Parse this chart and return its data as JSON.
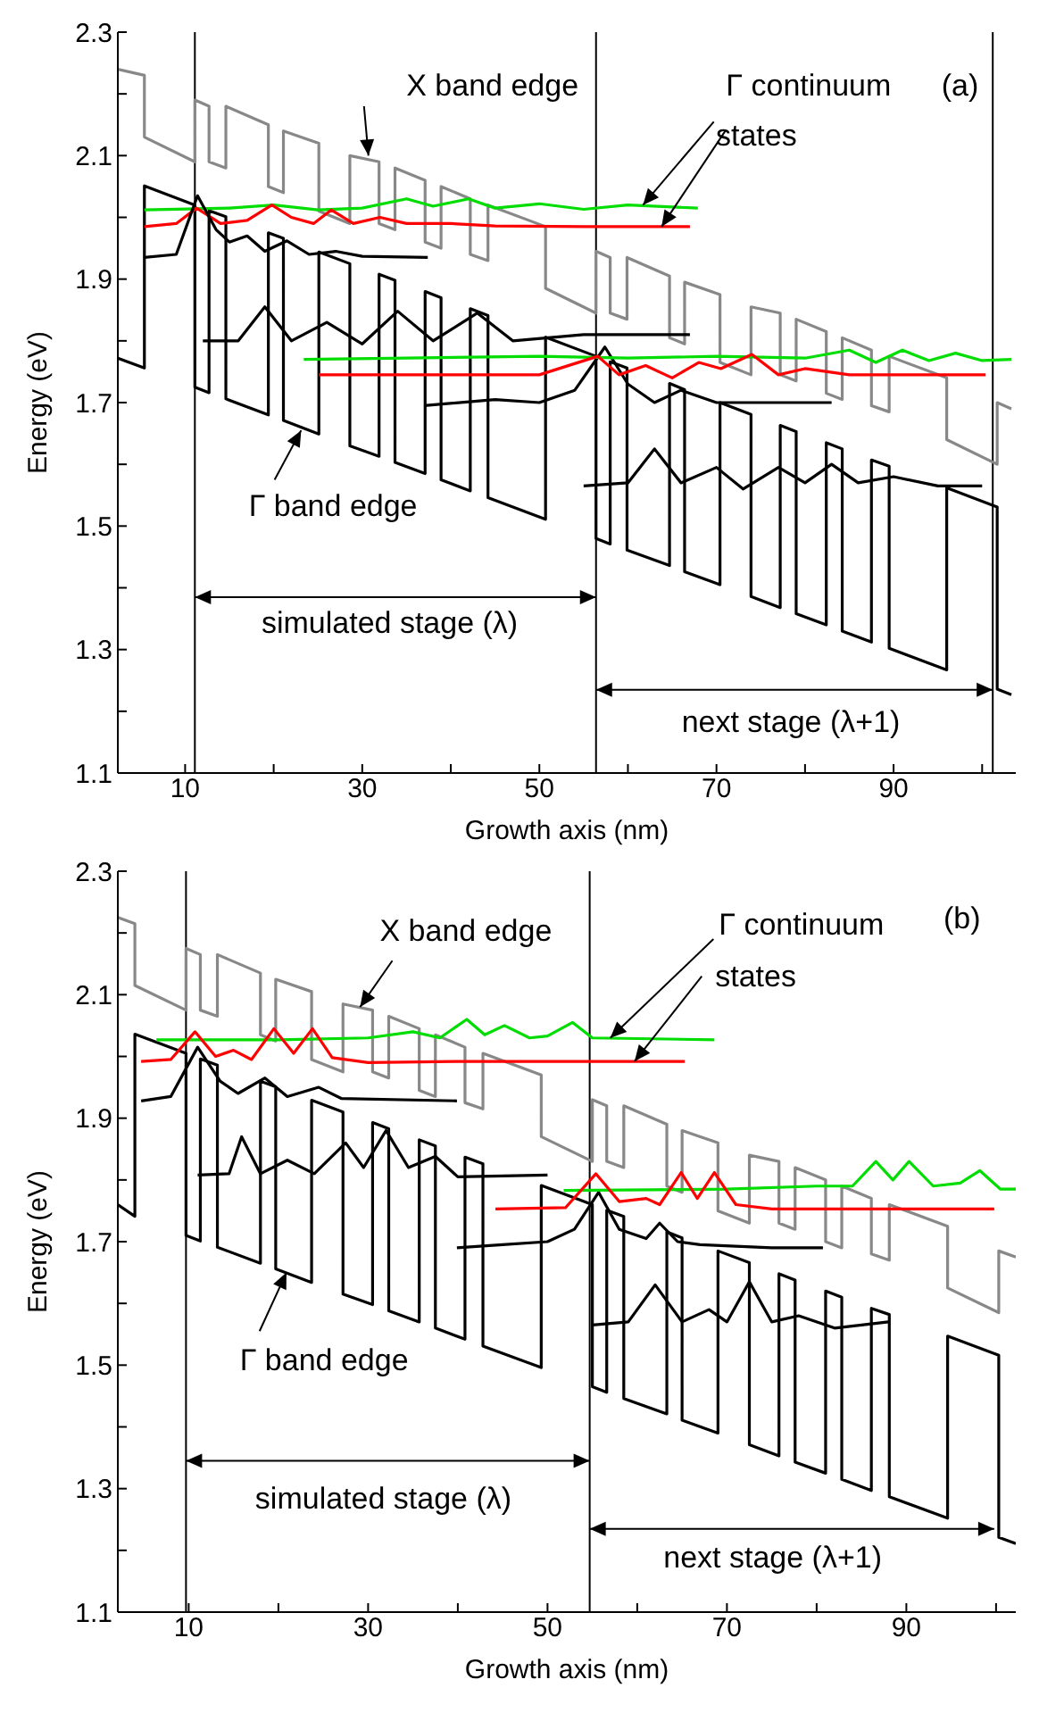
{
  "chart_data": [
    {
      "type": "line",
      "xlabel": "Growth axis (nm)",
      "ylabel": "Energy (eV)",
      "xlim": [
        2.4,
        103.8
      ],
      "ylim": [
        1.1,
        2.3
      ],
      "xticks": [
        10,
        {
          "value": 20,
          "label": null
        },
        30,
        {
          "value": 40,
          "label": null
        },
        50,
        {
          "value": 60,
          "label": null
        },
        70,
        {
          "value": 80,
          "label": null
        },
        90,
        {
          "value": 100,
          "label": null
        }
      ],
      "yticks": [
        1.1,
        {
          "value": 1.2,
          "label": null
        },
        1.3,
        {
          "value": 1.4,
          "label": null
        },
        1.5,
        {
          "value": 1.6,
          "label": null
        },
        1.7,
        {
          "value": 1.8,
          "label": null
        },
        1.9,
        {
          "value": 2.0,
          "label": null
        },
        2.1,
        {
          "value": 2.2,
          "label": null
        },
        2.3
      ],
      "ref_lines": [
        {
          "axis": "x",
          "value": 11.1,
          "color": "#000000"
        },
        {
          "axis": "x",
          "value": 56.4,
          "color": "#000000"
        },
        {
          "axis": "x",
          "value": 101.2,
          "color": "#000000"
        }
      ],
      "annotations": [
        {
          "text": "X band edge",
          "x": 30.7,
          "y": 2.1
        },
        {
          "text": "Γ continuum",
          "x": 61.7,
          "y": 2.02
        },
        {
          "text": "states",
          "x": 63.8,
          "y": 1.985
        },
        "(a)",
        {
          "text": "Γ band edge",
          "x": 23.1,
          "y": 1.655
        },
        "simulated stage (λ)",
        "next stage (λ+1)"
      ],
      "series": [
        {
          "type": "line",
          "color": "#888888",
          "x": [
            2.4,
            5.4,
            5.4,
            11.1,
            11.1,
            12.7,
            12.7,
            14.6,
            14.6,
            19.4,
            19.4,
            21.1,
            21.1,
            25.1,
            25.1,
            28.6,
            28.6,
            31.9,
            31.9,
            33.7,
            33.7,
            37.1,
            37.1,
            38.9,
            38.9,
            42.2,
            42.2,
            44.2,
            44.2,
            50.7,
            50.7,
            56.4,
            56.4,
            58.0,
            58.0,
            59.9,
            59.9,
            64.7,
            64.7,
            66.4,
            66.4,
            70.4,
            70.4,
            73.9,
            73.9,
            77.2,
            77.2,
            79.0,
            79.0,
            82.4,
            82.4,
            84.2,
            84.2,
            87.5,
            87.5,
            89.5,
            89.5,
            96.0,
            96.0,
            101.7,
            101.7,
            103.3
          ],
          "values": [
            2.24,
            2.23,
            2.13,
            2.09,
            2.19,
            2.18,
            2.09,
            2.08,
            2.18,
            2.15,
            2.05,
            2.04,
            2.14,
            2.12,
            2.01,
            1.99,
            2.1,
            2.09,
            1.99,
            1.98,
            2.08,
            2.06,
            1.96,
            1.95,
            2.05,
            2.03,
            1.94,
            1.93,
            2.02,
            1.985,
            1.885,
            1.845,
            1.945,
            1.935,
            1.845,
            1.835,
            1.935,
            1.905,
            1.805,
            1.795,
            1.895,
            1.875,
            1.765,
            1.745,
            1.855,
            1.845,
            1.745,
            1.735,
            1.835,
            1.815,
            1.715,
            1.705,
            1.805,
            1.785,
            1.695,
            1.685,
            1.775,
            1.74,
            1.64,
            1.6,
            1.7,
            1.69
          ]
        },
        {
          "type": "line",
          "color": "#000000",
          "x": [
            2.4,
            5.4,
            5.4,
            11.1,
            11.1,
            12.7,
            12.7,
            14.6,
            14.6,
            19.4,
            19.4,
            21.1,
            21.1,
            25.1,
            25.1,
            28.6,
            28.6,
            31.9,
            31.9,
            33.7,
            33.7,
            37.1,
            37.1,
            38.9,
            38.9,
            42.2,
            42.2,
            44.2,
            44.2,
            50.7,
            50.7,
            56.4,
            56.4,
            58.0,
            58.0,
            59.9,
            59.9,
            64.7,
            64.7,
            66.4,
            66.4,
            70.4,
            70.4,
            73.9,
            73.9,
            77.2,
            77.2,
            79.0,
            79.0,
            82.4,
            82.4,
            84.2,
            84.2,
            87.5,
            87.5,
            89.5,
            89.5,
            96.0,
            96.0,
            101.7,
            101.7,
            103.3
          ],
          "values": [
            1.772,
            1.756,
            2.051,
            2.02,
            1.725,
            1.716,
            2.011,
            2.001,
            1.706,
            1.68,
            1.975,
            1.966,
            1.671,
            1.649,
            1.944,
            1.925,
            1.63,
            1.613,
            1.908,
            1.898,
            1.603,
            1.585,
            1.88,
            1.87,
            1.575,
            1.557,
            1.852,
            1.841,
            1.546,
            1.511,
            1.806,
            1.775,
            1.48,
            1.471,
            1.766,
            1.756,
            1.461,
            1.436,
            1.731,
            1.721,
            1.426,
            1.405,
            1.7,
            1.681,
            1.386,
            1.368,
            1.663,
            1.653,
            1.358,
            1.34,
            1.635,
            1.625,
            1.33,
            1.312,
            1.607,
            1.597,
            1.302,
            1.267,
            1.562,
            1.531,
            1.236,
            1.227
          ]
        },
        {
          "type": "line",
          "color": "#00dd00",
          "x": [
            5.4,
            15,
            20,
            25,
            30,
            35,
            38,
            42,
            45,
            50,
            55,
            60,
            67.9
          ],
          "values": [
            2.012,
            2.015,
            2.02,
            2.012,
            2.015,
            2.03,
            2.018,
            2.03,
            2.015,
            2.022,
            2.013,
            2.02,
            2.015
          ]
        },
        {
          "type": "line",
          "color": "#ff0000",
          "x": [
            5.4,
            9,
            11.3,
            14,
            17,
            19.8,
            22,
            24.5,
            26.5,
            29,
            32,
            35,
            40,
            45,
            55,
            67
          ],
          "values": [
            1.985,
            1.99,
            2.015,
            1.99,
            1.995,
            2.02,
            2.0,
            1.99,
            2.012,
            1.99,
            2.0,
            1.99,
            1.99,
            1.986,
            1.985,
            1.985
          ]
        },
        {
          "type": "line",
          "color": "#000000",
          "x": [
            5.4,
            9,
            11.4,
            13.5,
            15,
            17,
            19,
            21.5,
            24,
            27,
            30,
            37.4
          ],
          "values": [
            1.935,
            1.94,
            2.035,
            1.98,
            1.96,
            1.97,
            1.945,
            1.962,
            1.94,
            1.945,
            1.937,
            1.935
          ]
        },
        {
          "type": "line",
          "color": "#000000",
          "x": [
            12,
            16,
            19,
            22,
            26,
            30,
            34,
            38,
            43,
            47,
            55,
            67
          ],
          "values": [
            1.8,
            1.8,
            1.855,
            1.8,
            1.83,
            1.795,
            1.848,
            1.8,
            1.845,
            1.8,
            1.81,
            1.81
          ]
        },
        {
          "type": "line",
          "color": "#000000",
          "x": [
            37,
            45,
            50,
            54,
            57.4,
            60,
            63,
            66,
            70,
            80,
            83
          ],
          "values": [
            1.695,
            1.705,
            1.7,
            1.72,
            1.79,
            1.73,
            1.7,
            1.72,
            1.7,
            1.7,
            1.7
          ]
        },
        {
          "type": "line",
          "color": "#000000",
          "x": [
            55,
            60,
            63,
            66,
            70,
            73,
            77,
            80,
            83,
            86,
            90,
            95,
            100
          ],
          "values": [
            1.565,
            1.57,
            1.625,
            1.57,
            1.595,
            1.56,
            1.595,
            1.57,
            1.6,
            1.57,
            1.58,
            1.565,
            1.565
          ]
        },
        {
          "type": "line",
          "color": "#00dd00",
          "x": [
            23.4,
            35,
            50,
            60,
            70,
            80,
            85,
            88,
            91,
            94,
            97,
            100,
            103.3
          ],
          "values": [
            1.77,
            1.772,
            1.775,
            1.772,
            1.775,
            1.772,
            1.785,
            1.765,
            1.785,
            1.768,
            1.78,
            1.768,
            1.77
          ]
        },
        {
          "type": "line",
          "color": "#ff0000",
          "x": [
            25.1,
            50,
            56.6,
            59,
            62,
            65,
            68,
            70.5,
            74,
            77,
            80,
            85,
            100.4
          ],
          "values": [
            1.745,
            1.745,
            1.775,
            1.745,
            1.76,
            1.74,
            1.765,
            1.755,
            1.778,
            1.745,
            1.755,
            1.745,
            1.745
          ]
        }
      ]
    },
    {
      "type": "line",
      "xlabel": "Growth axis (nm)",
      "ylabel": "Energy (eV)",
      "xlim": [
        2.1,
        102.2
      ],
      "ylim": [
        1.1,
        2.3
      ],
      "xticks": [
        10,
        {
          "value": 20,
          "label": null
        },
        30,
        {
          "value": 40,
          "label": null
        },
        50,
        {
          "value": 60,
          "label": null
        },
        70,
        {
          "value": 80,
          "label": null
        },
        90,
        {
          "value": 100,
          "label": null
        }
      ],
      "yticks": [
        1.1,
        {
          "value": 1.2,
          "label": null
        },
        1.3,
        {
          "value": 1.4,
          "label": null
        },
        1.5,
        {
          "value": 1.6,
          "label": null
        },
        1.7,
        {
          "value": 1.8,
          "label": null
        },
        1.9,
        {
          "value": 2.0,
          "label": null
        },
        2.1,
        {
          "value": 2.2,
          "label": null
        },
        2.3
      ],
      "ref_lines": [
        {
          "axis": "x",
          "value": 9.7,
          "color": "#000000"
        },
        {
          "axis": "x",
          "value": 54.7,
          "color": "#000000"
        }
      ],
      "annotations": [
        {
          "text": "X band edge",
          "x": 29.1,
          "y": 2.08
        },
        {
          "text": "Γ continuum",
          "x": 57.0,
          "y": 2.03
        },
        {
          "text": "states",
          "x": 59.7,
          "y": 1.992
        },
        "(b)",
        {
          "text": "Γ band edge",
          "x": 20.9,
          "y": 1.65
        },
        "simulated stage (λ)",
        "next stage (λ+1)"
      ],
      "series": [
        {
          "type": "line",
          "color": "#888888",
          "x": [
            2.1,
            4.0,
            4.0,
            9.7,
            9.7,
            11.3,
            11.3,
            13.2,
            13.2,
            18.0,
            18.0,
            19.7,
            19.7,
            23.7,
            23.7,
            27.2,
            27.2,
            30.5,
            30.5,
            32.3,
            32.3,
            35.7,
            35.7,
            37.5,
            37.5,
            40.8,
            40.8,
            42.8,
            42.8,
            49.3,
            49.3,
            55.0,
            55.0,
            56.6,
            56.6,
            58.5,
            58.5,
            63.3,
            63.3,
            65.0,
            65.0,
            69.0,
            69.0,
            72.5,
            72.5,
            75.8,
            75.8,
            77.6,
            77.6,
            81.0,
            81.0,
            82.8,
            82.8,
            86.1,
            86.1,
            88.1,
            88.1,
            94.6,
            94.6,
            100.3,
            100.3,
            102.2
          ],
          "values": [
            2.225,
            2.215,
            2.115,
            2.075,
            2.175,
            2.165,
            2.075,
            2.065,
            2.165,
            2.135,
            2.035,
            2.025,
            2.125,
            2.105,
            1.995,
            1.975,
            2.085,
            2.075,
            1.975,
            1.965,
            2.065,
            2.045,
            1.945,
            1.935,
            2.035,
            2.015,
            1.925,
            1.915,
            2.005,
            1.97,
            1.87,
            1.83,
            1.93,
            1.92,
            1.83,
            1.82,
            1.92,
            1.89,
            1.79,
            1.78,
            1.88,
            1.86,
            1.75,
            1.73,
            1.84,
            1.83,
            1.73,
            1.72,
            1.82,
            1.8,
            1.7,
            1.69,
            1.79,
            1.77,
            1.68,
            1.67,
            1.76,
            1.725,
            1.625,
            1.585,
            1.685,
            1.675
          ]
        },
        {
          "type": "line",
          "color": "#000000",
          "x": [
            2.1,
            4.0,
            4.0,
            9.7,
            9.7,
            11.3,
            11.3,
            13.2,
            13.2,
            18.0,
            18.0,
            19.7,
            19.7,
            23.7,
            23.7,
            27.2,
            27.2,
            30.5,
            30.5,
            32.3,
            32.3,
            35.7,
            35.7,
            37.5,
            37.5,
            40.8,
            40.8,
            42.8,
            42.8,
            49.3,
            49.3,
            55.0,
            55.0,
            56.6,
            56.6,
            58.5,
            58.5,
            63.3,
            63.3,
            65.0,
            65.0,
            69.0,
            69.0,
            72.5,
            72.5,
            75.8,
            75.8,
            77.6,
            77.6,
            81.0,
            81.0,
            82.8,
            82.8,
            86.1,
            86.1,
            88.1,
            88.1,
            94.6,
            94.6,
            100.3,
            100.3,
            102.2
          ],
          "values": [
            1.76,
            1.741,
            2.036,
            2.005,
            1.71,
            1.701,
            1.996,
            1.986,
            1.691,
            1.665,
            1.96,
            1.951,
            1.656,
            1.634,
            1.929,
            1.91,
            1.615,
            1.598,
            1.893,
            1.883,
            1.588,
            1.57,
            1.865,
            1.855,
            1.56,
            1.542,
            1.837,
            1.826,
            1.531,
            1.496,
            1.791,
            1.76,
            1.465,
            1.456,
            1.751,
            1.741,
            1.446,
            1.421,
            1.716,
            1.706,
            1.411,
            1.39,
            1.685,
            1.666,
            1.371,
            1.353,
            1.648,
            1.638,
            1.343,
            1.325,
            1.62,
            1.61,
            1.315,
            1.297,
            1.592,
            1.582,
            1.287,
            1.252,
            1.547,
            1.516,
            1.221,
            1.211
          ]
        },
        {
          "type": "line",
          "color": "#00dd00",
          "x": [
            6.4,
            20,
            30,
            35,
            38,
            41,
            43,
            45.2,
            48,
            50,
            52.8,
            55,
            68.6
          ],
          "values": [
            2.027,
            2.027,
            2.03,
            2.04,
            2.03,
            2.06,
            2.035,
            2.05,
            2.03,
            2.033,
            2.055,
            2.03,
            2.027
          ]
        },
        {
          "type": "line",
          "color": "#ff0000",
          "x": [
            4.7,
            8,
            10.7,
            13,
            15,
            17,
            19.5,
            21.7,
            23.8,
            26,
            30,
            40,
            65.3
          ],
          "values": [
            1.992,
            1.995,
            2.04,
            2.0,
            2.01,
            1.995,
            2.045,
            2.005,
            2.045,
            1.998,
            1.99,
            1.992,
            1.992
          ]
        },
        {
          "type": "line",
          "color": "#000000",
          "x": [
            4.7,
            8,
            11,
            13.5,
            15.5,
            18.5,
            21,
            24.5,
            27,
            39.9
          ],
          "values": [
            1.928,
            1.935,
            2.015,
            1.96,
            1.94,
            1.965,
            1.935,
            1.95,
            1.932,
            1.928
          ]
        },
        {
          "type": "line",
          "color": "#000000",
          "x": [
            11,
            14.5,
            15.9,
            18,
            21,
            24,
            27.5,
            29.5,
            32,
            34.5,
            37.5,
            40,
            50
          ],
          "values": [
            1.808,
            1.81,
            1.87,
            1.81,
            1.832,
            1.81,
            1.86,
            1.82,
            1.88,
            1.82,
            1.838,
            1.805,
            1.808
          ]
        },
        {
          "type": "line",
          "color": "#000000",
          "x": [
            39.9,
            45,
            50,
            53,
            55.7,
            58,
            61,
            62.5,
            64.5,
            67,
            75,
            80.7
          ],
          "values": [
            1.69,
            1.695,
            1.7,
            1.72,
            1.78,
            1.72,
            1.705,
            1.73,
            1.7,
            1.695,
            1.69,
            1.69
          ]
        },
        {
          "type": "line",
          "color": "#000000",
          "x": [
            55,
            59,
            62,
            65,
            68,
            70,
            72.5,
            75,
            78,
            82,
            88
          ],
          "values": [
            1.565,
            1.57,
            1.63,
            1.57,
            1.59,
            1.57,
            1.635,
            1.57,
            1.58,
            1.56,
            1.57
          ]
        },
        {
          "type": "line",
          "color": "#00dd00",
          "x": [
            51.8,
            70,
            80,
            84,
            86.6,
            88.5,
            90.3,
            93,
            96,
            98.2,
            100.5,
            102.2
          ],
          "values": [
            1.783,
            1.785,
            1.79,
            1.79,
            1.83,
            1.8,
            1.83,
            1.79,
            1.795,
            1.815,
            1.785,
            1.785
          ]
        },
        {
          "type": "line",
          "color": "#ff0000",
          "x": [
            44.2,
            52,
            55.4,
            58,
            61,
            62.5,
            64.9,
            66.7,
            68.6,
            71,
            75,
            99.8
          ],
          "values": [
            1.753,
            1.755,
            1.81,
            1.765,
            1.77,
            1.76,
            1.812,
            1.77,
            1.812,
            1.76,
            1.753,
            1.753
          ]
        }
      ]
    }
  ]
}
